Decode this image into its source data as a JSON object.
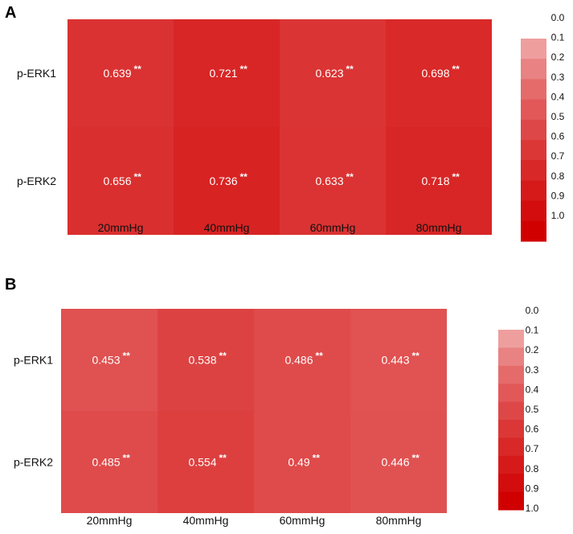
{
  "chart_data": [
    {
      "type": "heatmap",
      "panel": "A",
      "rows": [
        "p-ERK1",
        "p-ERK2"
      ],
      "columns": [
        "20mmHg",
        "40mmHg",
        "60mmHg",
        "80mmHg"
      ],
      "values": [
        [
          0.639,
          0.721,
          0.623,
          0.698
        ],
        [
          0.656,
          0.736,
          0.633,
          0.718
        ]
      ],
      "value_labels": [
        [
          "0.639",
          "0.721",
          "0.623",
          "0.698"
        ],
        [
          "0.656",
          "0.736",
          "0.633",
          "0.718"
        ]
      ],
      "significance": "**",
      "legend": {
        "ticks": [
          "0.0",
          "0.1",
          "0.2",
          "0.3",
          "0.4",
          "0.5",
          "0.6",
          "0.7",
          "0.8",
          "0.9",
          "1.0"
        ],
        "range": [
          0.0,
          1.0
        ],
        "placement": "right"
      }
    },
    {
      "type": "heatmap",
      "panel": "B",
      "rows": [
        "p-ERK1",
        "p-ERK2"
      ],
      "columns": [
        "20mmHg",
        "40mmHg",
        "60mmHg",
        "80mmHg"
      ],
      "values": [
        [
          0.453,
          0.538,
          0.486,
          0.443
        ],
        [
          0.485,
          0.554,
          0.49,
          0.446
        ]
      ],
      "value_labels": [
        [
          "0.453",
          "0.538",
          "0.486",
          "0.443"
        ],
        [
          "0.485",
          "0.554",
          "0.49",
          "0.446"
        ]
      ],
      "significance": "**",
      "legend": {
        "ticks": [
          "0.0",
          "0.1",
          "0.2",
          "0.3",
          "0.4",
          "0.5",
          "0.6",
          "0.7",
          "0.8",
          "0.9",
          "1.0"
        ],
        "range": [
          0.0,
          1.0
        ],
        "placement": "right"
      }
    }
  ],
  "colors": {
    "scale_low": "#fce4e4",
    "scale_high": "#d10000",
    "cell_text": "#ffffff"
  }
}
